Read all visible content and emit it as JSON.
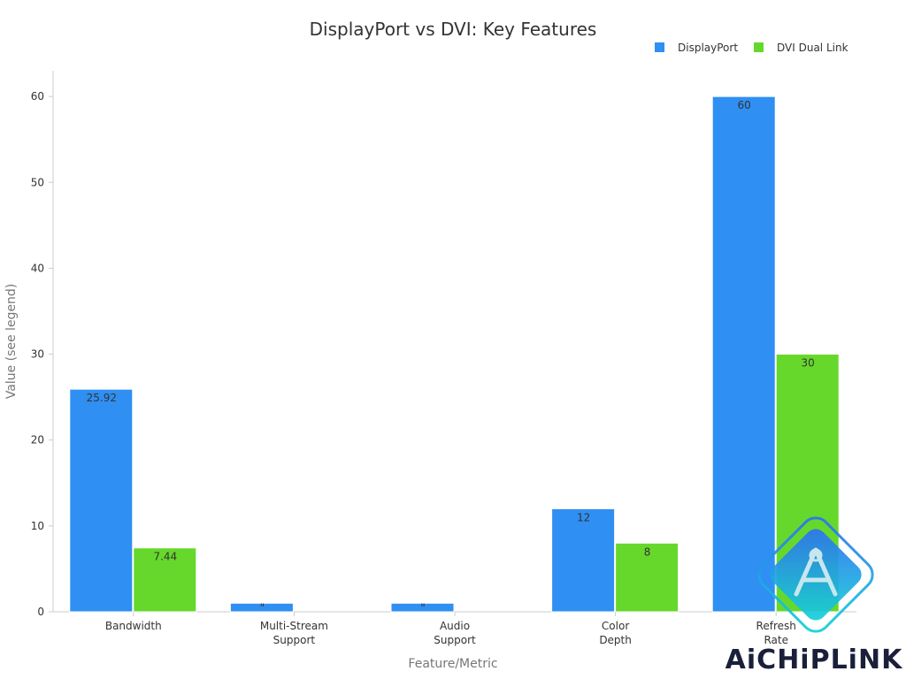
{
  "chart_data": {
    "type": "bar",
    "title": "DisplayPort vs DVI: Key Features",
    "xlabel": "Feature/Metric",
    "ylabel": "Value (see legend)",
    "categories": [
      [
        "Bandwidth"
      ],
      [
        "Multi-Stream",
        "Support"
      ],
      [
        "Audio",
        "Support"
      ],
      [
        "Color",
        "Depth"
      ],
      [
        "Refresh",
        "Rate"
      ]
    ],
    "series": [
      {
        "name": "DisplayPort",
        "color": "#2f8ff2",
        "values": [
          25.92,
          1,
          1,
          12,
          60
        ],
        "labels": [
          "25.92",
          "\"",
          "\"",
          "12",
          "60"
        ]
      },
      {
        "name": "DVI Dual Link",
        "color": "#66d82b",
        "values": [
          7.44,
          0,
          0,
          8,
          30
        ],
        "labels": [
          "7.44",
          "",
          "",
          "8",
          "30"
        ]
      }
    ],
    "ylim": [
      0,
      63
    ],
    "yticks": [
      0,
      10,
      20,
      30,
      40,
      50,
      60
    ],
    "grid": false,
    "legend_position": "top-right"
  },
  "watermark": {
    "text": "AiCHiPLiNK",
    "icon": "aichiplink-logo-icon"
  }
}
